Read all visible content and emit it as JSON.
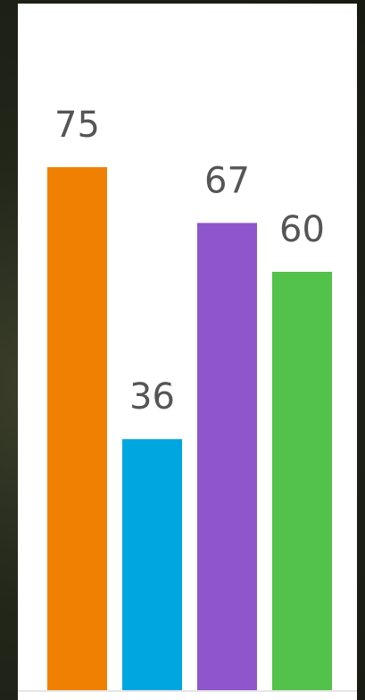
{
  "chart_data": {
    "type": "bar",
    "values": [
      75,
      36,
      67,
      60
    ],
    "colors": [
      "#f08002",
      "#00a6e0",
      "#8e55cc",
      "#52c24a"
    ],
    "ylim": [
      0,
      100
    ],
    "grid": false,
    "title": "",
    "xlabel": "",
    "ylabel": ""
  }
}
